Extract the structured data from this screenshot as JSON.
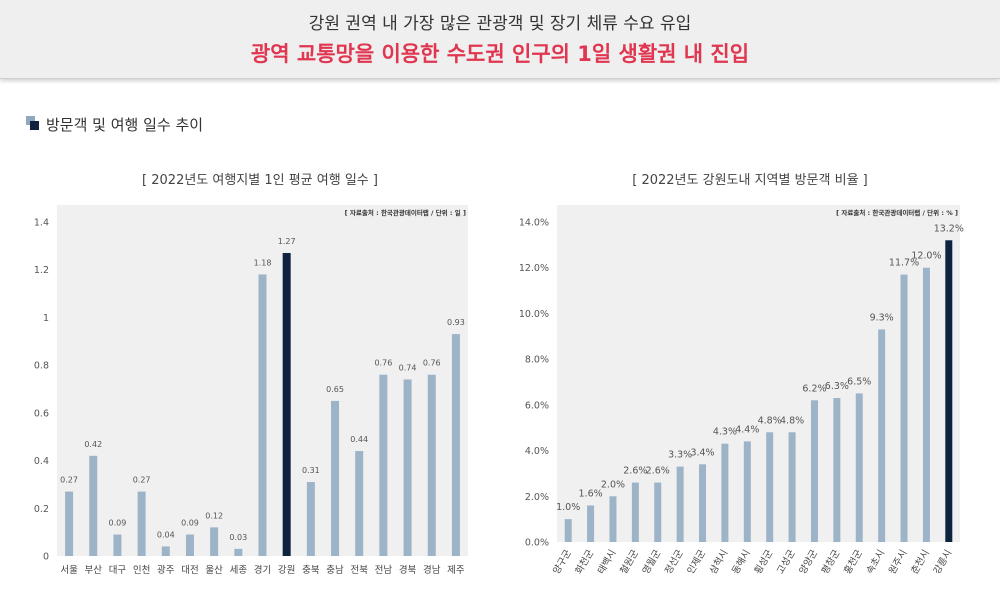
{
  "header": {
    "line1": "강원 권역 내 가장 많은 관광객 및 장기 체류 수요 유입",
    "line2": "광역 교통망을 이용한 수도권 인구의 1일 생활권 내 진입"
  },
  "section": {
    "title": "방문객 및 여행 일수 추이"
  },
  "colors": {
    "bar": "#9cb3c8",
    "highlight": "#0f2340",
    "panel": "#f0f0f0",
    "accent_red": "#e0364f"
  },
  "chart_data": [
    {
      "type": "bar",
      "title": "[ 2022년도 여행지별 1인 평균 여행 일수 ]",
      "source": "[ 자료출처 : 한국관광데이터랩 / 단위 : 일 ]",
      "categories": [
        "서울",
        "부산",
        "대구",
        "인천",
        "광주",
        "대전",
        "울산",
        "세종",
        "경기",
        "강원",
        "충북",
        "충남",
        "전북",
        "전남",
        "경북",
        "경남",
        "제주"
      ],
      "values": [
        0.27,
        0.42,
        0.09,
        0.27,
        0.04,
        0.09,
        0.12,
        0.03,
        1.18,
        1.27,
        0.31,
        0.65,
        0.44,
        0.76,
        0.74,
        0.76,
        0.93
      ],
      "value_labels": [
        "0.27",
        "0.42",
        "0.09",
        "0.27",
        "0.04",
        "0.09",
        "0.12",
        "0.03",
        "1.18",
        "1.27",
        "0.31",
        "0.65",
        "0.44",
        "0.76",
        "0.74",
        "0.76",
        "0.93"
      ],
      "highlight": "강원",
      "ylim": [
        0,
        1.4
      ],
      "yticks": [
        0,
        0.2,
        0.4,
        0.6,
        0.8,
        1,
        1.2,
        1.4
      ],
      "ytick_labels": [
        "0",
        "0.2",
        "0.4",
        "0.6",
        "0.8",
        "1",
        "1.2",
        "1.4"
      ],
      "grid": false
    },
    {
      "type": "bar",
      "title": "[ 2022년도 강원도내 지역별 방문객 비율 ]",
      "source": "[ 자료출처 : 한국관광데이터랩 / 단위 : % ]",
      "categories": [
        "양구군",
        "화천군",
        "태백시",
        "철원군",
        "영월군",
        "정선군",
        "인제군",
        "삼척시",
        "동해시",
        "횡성군",
        "고성군",
        "양양군",
        "평창군",
        "홍천군",
        "속초시",
        "원주시",
        "춘천시",
        "강릉시"
      ],
      "values": [
        1.0,
        1.6,
        2.0,
        2.6,
        2.6,
        3.3,
        3.4,
        4.3,
        4.4,
        4.8,
        4.8,
        6.2,
        6.3,
        6.5,
        9.3,
        11.7,
        12.0,
        13.2
      ],
      "value_labels": [
        "1.0%",
        "1.6%",
        "2.0%",
        "2.6%",
        "2.6%",
        "3.3%",
        "3.4%",
        "4.3%",
        "4.4%",
        "4.8%",
        "4.8%",
        "6.2%",
        "6.3%",
        "6.5%",
        "9.3%",
        "11.7%",
        "12.0%",
        "13.2%"
      ],
      "highlight": "강릉시",
      "ylim": [
        0,
        14
      ],
      "yticks": [
        0,
        2,
        4,
        6,
        8,
        10,
        12,
        14
      ],
      "ytick_labels": [
        "0.0%",
        "2.0%",
        "4.0%",
        "6.0%",
        "8.0%",
        "10.0%",
        "12.0%",
        "14.0%"
      ],
      "grid": false
    }
  ]
}
